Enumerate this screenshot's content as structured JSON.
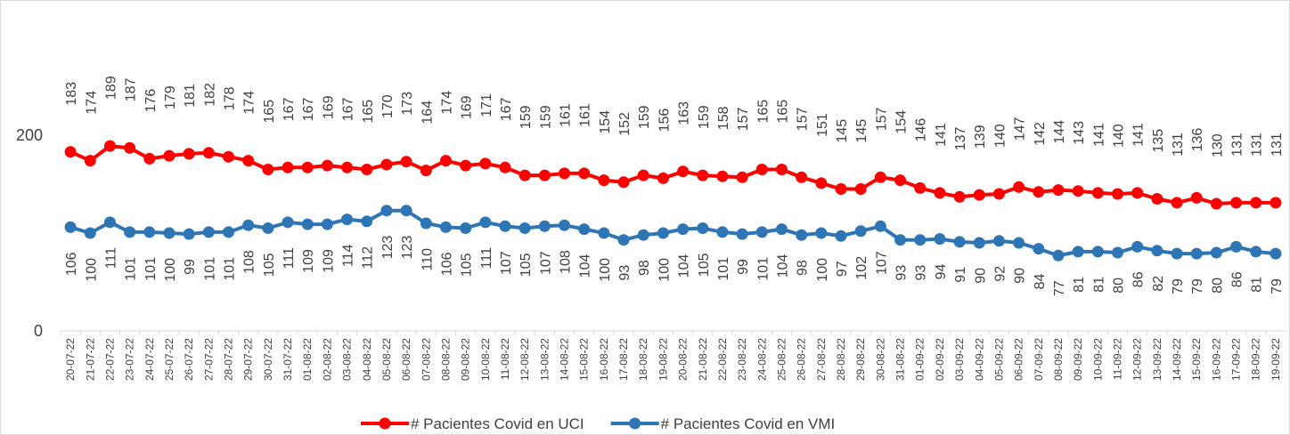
{
  "chart_data": {
    "type": "line",
    "categories": [
      "20-07-22",
      "21-07-22",
      "22-07-22",
      "23-07-22",
      "24-07-22",
      "25-07-22",
      "26-07-22",
      "27-07-22",
      "28-07-22",
      "29-07-22",
      "30-07-22",
      "31-07-22",
      "01-08-22",
      "02-08-22",
      "03-08-22",
      "04-08-22",
      "05-08-22",
      "06-08-22",
      "07-08-22",
      "08-08-22",
      "09-08-22",
      "10-08-22",
      "11-08-22",
      "12-08-22",
      "13-08-22",
      "14-08-22",
      "15-08-22",
      "16-08-22",
      "17-08-22",
      "18-08-22",
      "19-08-22",
      "20-08-22",
      "21-08-22",
      "22-08-22",
      "23-08-22",
      "24-08-22",
      "25-08-22",
      "26-08-22",
      "27-08-22",
      "28-08-22",
      "29-08-22",
      "30-08-22",
      "31-08-22",
      "01-09-22",
      "02-09-22",
      "03-09-22",
      "04-09-22",
      "05-09-22",
      "06-09-22",
      "07-09-22",
      "08-09-22",
      "09-09-22",
      "10-09-22",
      "11-09-22",
      "12-09-22",
      "13-09-22",
      "14-09-22",
      "15-09-22",
      "16-09-22",
      "17-09-22",
      "18-09-22",
      "19-09-22"
    ],
    "series": [
      {
        "name": "# Pacientes Covid en UCI",
        "color": "#ff0000",
        "label_position": "above",
        "values": [
          183,
          174,
          189,
          187,
          176,
          179,
          181,
          182,
          178,
          174,
          165,
          167,
          167,
          169,
          167,
          165,
          170,
          173,
          164,
          174,
          169,
          171,
          167,
          159,
          159,
          161,
          161,
          154,
          152,
          159,
          156,
          163,
          159,
          158,
          157,
          165,
          165,
          157,
          151,
          145,
          145,
          157,
          154,
          146,
          141,
          137,
          139,
          140,
          147,
          142,
          144,
          143,
          141,
          140,
          141,
          135,
          131,
          136,
          130,
          131,
          131,
          131
        ]
      },
      {
        "name": "# Pacientes Covid en VMI",
        "color": "#2e75b6",
        "label_position": "below",
        "values": [
          106,
          100,
          111,
          101,
          101,
          100,
          99,
          101,
          101,
          108,
          105,
          111,
          109,
          109,
          114,
          112,
          123,
          123,
          110,
          106,
          105,
          111,
          107,
          105,
          107,
          108,
          104,
          100,
          93,
          98,
          100,
          104,
          105,
          101,
          99,
          101,
          104,
          98,
          100,
          97,
          102,
          107,
          93,
          93,
          94,
          91,
          90,
          92,
          90,
          84,
          77,
          81,
          81,
          80,
          86,
          82,
          79,
          79,
          80,
          86,
          81,
          79
        ]
      }
    ],
    "ylim": [
      0,
      300
    ],
    "yticks": [
      0,
      200
    ],
    "grid": false,
    "legend": "bottom"
  }
}
